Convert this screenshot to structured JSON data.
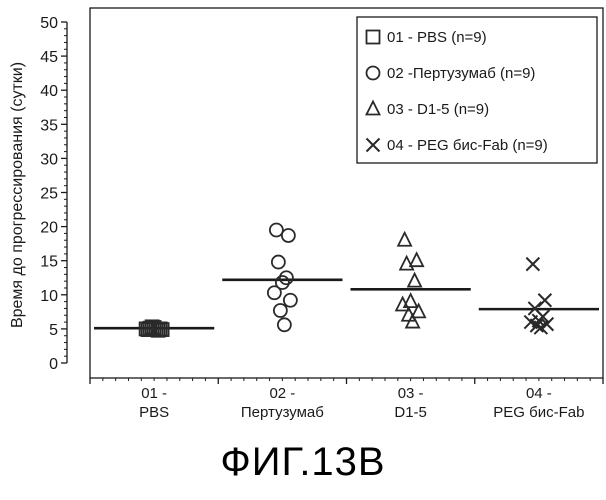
{
  "figure_caption": "ФИГ.13В",
  "colors": {
    "ink": "#1a1a1a",
    "marker": "#2a2a2a",
    "background": "#ffffff"
  },
  "chart_data": {
    "type": "scatter",
    "title": "",
    "xlabel": "",
    "ylabel": "Время до прогрессирования (сутки)",
    "ylim": [
      0,
      50
    ],
    "yticks": [
      0,
      5,
      10,
      15,
      20,
      25,
      30,
      35,
      40,
      45,
      50
    ],
    "grid": false,
    "legend_position": "top-right",
    "categories": [
      {
        "line1": "01 -",
        "line2": "PBS"
      },
      {
        "line1": "02 -",
        "line2": "Пертузумаб"
      },
      {
        "line1": "03 -",
        "line2": "D1-5"
      },
      {
        "line1": "04 -",
        "line2": "PEG бис-Fab"
      }
    ],
    "series": [
      {
        "name": "01 - PBS (n=9)",
        "marker": "square",
        "category": 0,
        "values": [
          4.9,
          5.0,
          5.1,
          4.8,
          5.2,
          5.0,
          4.9,
          5.3,
          5.0
        ],
        "median": 5.1
      },
      {
        "name": "02 -Пертузумаб (n=9)",
        "marker": "circle",
        "category": 1,
        "values": [
          19.5,
          18.7,
          14.8,
          12.5,
          11.8,
          10.3,
          9.2,
          7.7,
          5.6
        ],
        "median": 12.2
      },
      {
        "name": "03 - D1-5 (n=9)",
        "marker": "triangle",
        "category": 2,
        "values": [
          18.0,
          15.0,
          14.5,
          12.0,
          9.0,
          8.5,
          7.5,
          7.0,
          6.0
        ],
        "median": 10.8
      },
      {
        "name": "04 - PEG бис-Fab (n=9)",
        "marker": "x",
        "category": 3,
        "values": [
          14.5,
          9.2,
          8.0,
          6.8,
          6.2,
          6.0,
          5.7,
          5.5,
          5.2
        ],
        "median": 7.9
      }
    ]
  }
}
